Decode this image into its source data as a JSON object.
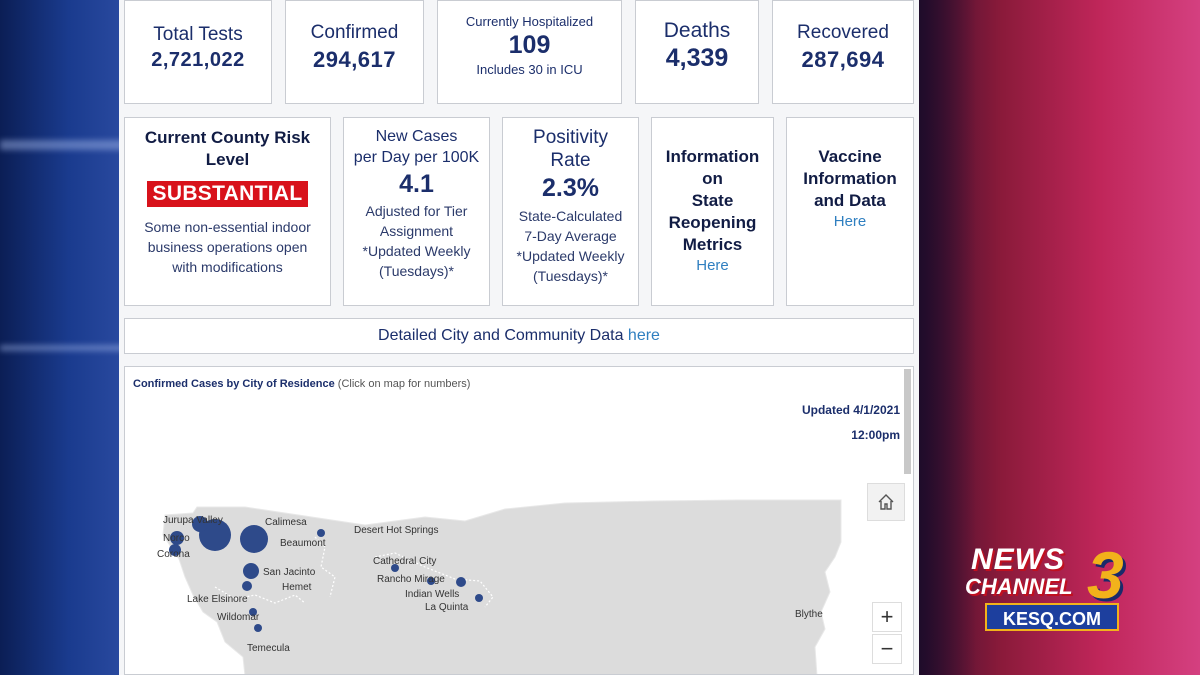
{
  "stats": {
    "total_tests": {
      "label": "Total Tests",
      "value": "2,721,022"
    },
    "confirmed": {
      "label": "Confirmed",
      "value": "294,617"
    },
    "hospitalized": {
      "label": "Currently Hospitalized",
      "value": "109",
      "note": "Includes 30 in ICU"
    },
    "deaths": {
      "label": "Deaths",
      "value": "4,339"
    },
    "recovered": {
      "label": "Recovered",
      "value": "287,694"
    }
  },
  "risk": {
    "title_line1": "Current County Risk",
    "title_line2": "Level",
    "level": "SUBSTANTIAL",
    "desc_line1": "Some non-essential indoor",
    "desc_line2": "business operations open",
    "desc_line3": "with modifications"
  },
  "new_cases": {
    "label_line1": "New Cases",
    "label_line2": "per Day per 100K",
    "value": "4.1",
    "note_line1": "Adjusted for Tier",
    "note_line2": "Assignment",
    "note_line3": "*Updated Weekly",
    "note_line4": "(Tuesdays)*"
  },
  "positivity": {
    "label_line1": "Positivity",
    "label_line2": "Rate",
    "value": "2.3%",
    "note_line1": "State-Calculated",
    "note_line2": "7-Day Average",
    "note_line3": "*Updated Weekly",
    "note_line4": "(Tuesdays)*"
  },
  "reopening": {
    "line1": "Information",
    "line2": "on",
    "line3": "State",
    "line4": "Reopening",
    "line5": "Metrics",
    "link": "Here"
  },
  "vaccine": {
    "line1": "Vaccine",
    "line2": "Information",
    "line3": "and Data",
    "link": "Here"
  },
  "city_data": {
    "text": "Detailed City and Community Data",
    "link": "here"
  },
  "map": {
    "title": "Confirmed Cases by City of Residence",
    "subtitle": "(Click on map for numbers)",
    "updated_date": "Updated 4/1/2021",
    "updated_time": "12:00pm",
    "zoom_in": "+",
    "zoom_out": "−",
    "home_icon": "home-icon",
    "cities": [
      {
        "name": "Jurupa Valley"
      },
      {
        "name": "Norco"
      },
      {
        "name": "Corona"
      },
      {
        "name": "Calimesa"
      },
      {
        "name": "Beaumont"
      },
      {
        "name": "San Jacinto"
      },
      {
        "name": "Hemet"
      },
      {
        "name": "Lake Elsinore"
      },
      {
        "name": "Wildomar"
      },
      {
        "name": "Temecula"
      },
      {
        "name": "Desert Hot Springs"
      },
      {
        "name": "Cathedral City"
      },
      {
        "name": "Rancho Mirage"
      },
      {
        "name": "Indian Wells"
      },
      {
        "name": "La Quinta"
      },
      {
        "name": "Blythe"
      }
    ]
  },
  "logo": {
    "line1": "NEWS",
    "line2": "CHANNEL",
    "number": "3",
    "site": "KESQ.COM"
  },
  "colors": {
    "accent": "#1b2e6b",
    "risk": "#d8121b",
    "link": "#2f7fc0",
    "bubble": "#2e4a8a"
  }
}
